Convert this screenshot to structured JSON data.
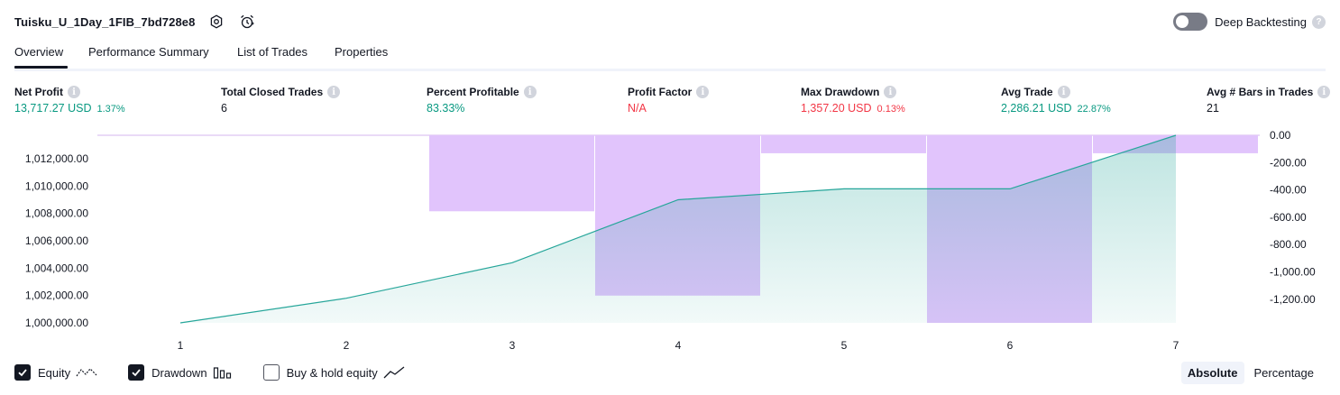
{
  "header": {
    "strategy_name": "Tuisku_U_1Day_1FIB_7bd728e8",
    "settings_icon": "gear-icon",
    "alert_icon": "alarm-clock-icon",
    "deep_backtesting_label": "Deep Backtesting",
    "deep_backtesting_enabled": false
  },
  "tabs": [
    {
      "label": "Overview",
      "active": true
    },
    {
      "label": "Performance Summary",
      "active": false
    },
    {
      "label": "List of Trades",
      "active": false
    },
    {
      "label": "Properties",
      "active": false
    }
  ],
  "metrics": [
    {
      "label": "Net Profit",
      "value": "13,717.27 USD",
      "pct": "1.37%",
      "color": "#089981"
    },
    {
      "label": "Total Closed Trades",
      "value": "6",
      "pct": "",
      "color": "#131722"
    },
    {
      "label": "Percent Profitable",
      "value": "83.33%",
      "pct": "",
      "color": "#089981"
    },
    {
      "label": "Profit Factor",
      "value": "N/A",
      "pct": "",
      "color": "#f23645"
    },
    {
      "label": "Max Drawdown",
      "value": "1,357.20 USD",
      "pct": "0.13%",
      "color": "#f23645"
    },
    {
      "label": "Avg Trade",
      "value": "2,286.21 USD",
      "pct": "22.87%",
      "color": "#089981"
    },
    {
      "label": "Avg # Bars in Trades",
      "value": "21",
      "pct": "",
      "color": "#131722"
    }
  ],
  "chart_data": {
    "type": "area",
    "x": [
      1,
      2,
      3,
      4,
      5,
      6,
      7
    ],
    "equity_series": {
      "values": [
        1000000,
        1001800,
        1004400,
        1009000,
        1009800,
        1009800,
        1013717.27
      ],
      "color": "#26a69a"
    },
    "drawdown_series": {
      "categories": [
        2,
        3,
        4,
        5,
        6,
        7
      ],
      "values": [
        0,
        -550,
        -1160,
        -130,
        -1357.2,
        -130
      ],
      "color": "#e1c4fc"
    },
    "left_axis": {
      "ticks": [
        "1,012,000.00",
        "1,010,000.00",
        "1,008,000.00",
        "1,006,000.00",
        "1,004,000.00",
        "1,002,000.00",
        "1,000,000.00"
      ],
      "range": [
        1000000,
        1013717.27
      ]
    },
    "right_axis": {
      "ticks": [
        "0.00",
        "-200.00",
        "-400.00",
        "-600.00",
        "-800.00",
        "-1,000.00",
        "-1,200.00"
      ],
      "range": [
        -1357.2,
        0
      ]
    },
    "x_ticks": [
      "1",
      "2",
      "3",
      "4",
      "5",
      "6",
      "7"
    ]
  },
  "legend": {
    "items": [
      {
        "label": "Equity",
        "checked": true,
        "icon": "line-chart-icon"
      },
      {
        "label": "Drawdown",
        "checked": true,
        "icon": "bar-chart-icon"
      },
      {
        "label": "Buy & hold equity",
        "checked": false,
        "icon": "trend-line-icon"
      }
    ]
  },
  "modes": [
    {
      "label": "Absolute",
      "active": true
    },
    {
      "label": "Percentage",
      "active": false
    }
  ]
}
